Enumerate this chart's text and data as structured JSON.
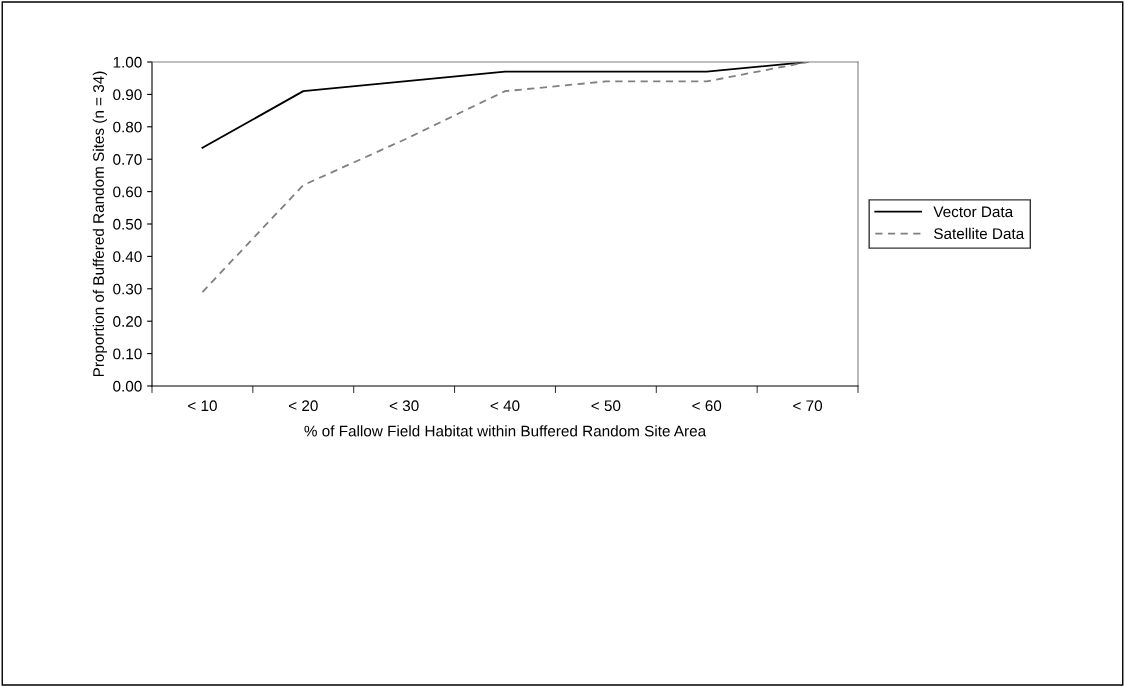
{
  "chart_data": {
    "type": "line",
    "xlabel": "% of Fallow Field Habitat within Buffered Random Site Area",
    "ylabel": "Proportion of Buffered Random Sites (n = 34)",
    "categories": [
      "< 10",
      "< 20",
      "< 30",
      "< 40",
      "< 50",
      "< 60",
      "< 70"
    ],
    "series": [
      {
        "name": "Vector Data",
        "color": "#000000",
        "line_style": "solid",
        "values": [
          0.735,
          0.91,
          0.94,
          0.97,
          0.97,
          0.97,
          1.0
        ]
      },
      {
        "name": "Satellite Data",
        "color": "#808080",
        "line_style": "dashed",
        "values": [
          0.29,
          0.62,
          0.76,
          0.91,
          0.94,
          0.94,
          1.0
        ]
      }
    ],
    "ylim": [
      0,
      1
    ],
    "yticks": [
      {
        "value": 0,
        "label": "0.00"
      },
      {
        "value": 0.1,
        "label": "0.10"
      },
      {
        "value": 0.2,
        "label": "0.20"
      },
      {
        "value": 0.3,
        "label": "0.30"
      },
      {
        "value": 0.4,
        "label": "0.40"
      },
      {
        "value": 0.5,
        "label": "0.50"
      },
      {
        "value": 0.6,
        "label": "0.60"
      },
      {
        "value": 0.7,
        "label": "0.70"
      },
      {
        "value": 0.8,
        "label": "0.80"
      },
      {
        "value": 0.9,
        "label": "0.90"
      },
      {
        "value": 1,
        "label": "1.00"
      }
    ],
    "grid": false,
    "legend": "right",
    "marker": "none"
  }
}
